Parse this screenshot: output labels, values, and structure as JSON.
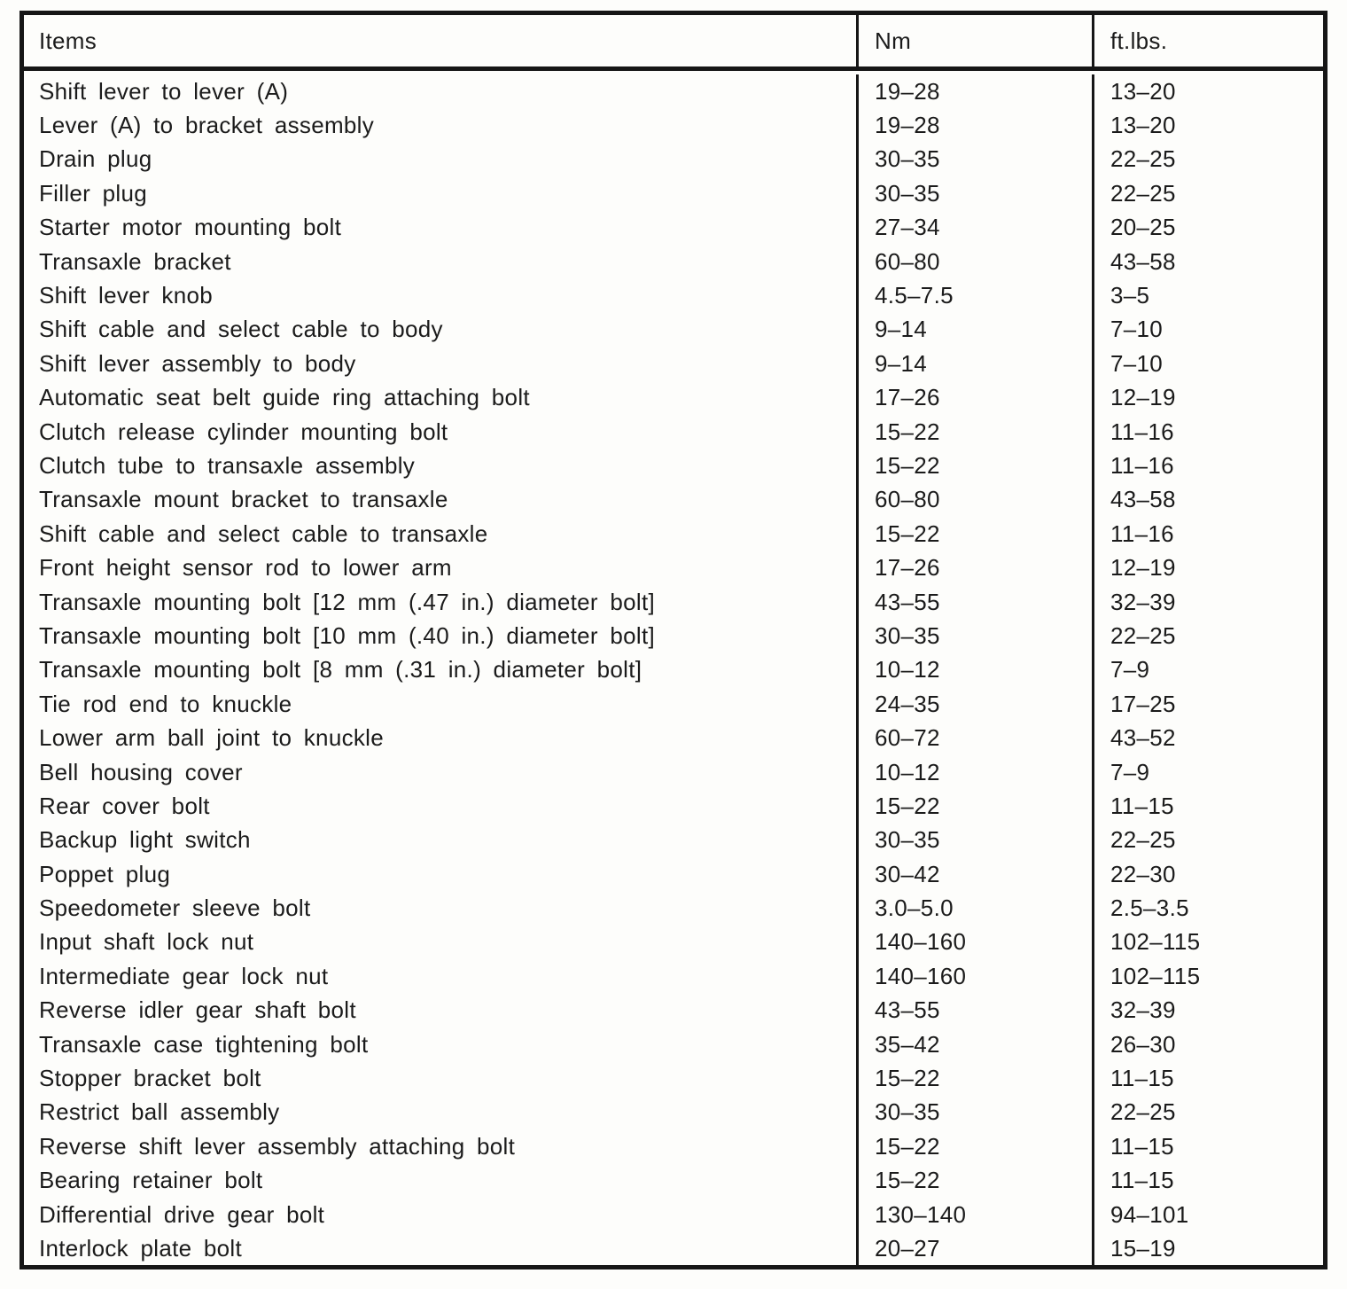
{
  "table": {
    "headers": [
      "Items",
      "Nm",
      "ft.lbs."
    ],
    "rows": [
      {
        "item": "Shift lever to lever (A)",
        "nm": "19–28",
        "ftlbs": "13–20"
      },
      {
        "item": "Lever (A) to bracket assembly",
        "nm": "19–28",
        "ftlbs": "13–20"
      },
      {
        "item": "Drain plug",
        "nm": "30–35",
        "ftlbs": "22–25"
      },
      {
        "item": "Filler plug",
        "nm": "30–35",
        "ftlbs": "22–25"
      },
      {
        "item": "Starter motor mounting bolt",
        "nm": "27–34",
        "ftlbs": "20–25"
      },
      {
        "item": "Transaxle bracket",
        "nm": "60–80",
        "ftlbs": "43–58"
      },
      {
        "item": "Shift lever knob",
        "nm": "4.5–7.5",
        "ftlbs": "3–5"
      },
      {
        "item": "Shift cable and select cable to body",
        "nm": "9–14",
        "ftlbs": "7–10"
      },
      {
        "item": "Shift lever assembly to body",
        "nm": "9–14",
        "ftlbs": "7–10"
      },
      {
        "item": "Automatic seat belt guide ring attaching bolt",
        "nm": "17–26",
        "ftlbs": "12–19"
      },
      {
        "item": "Clutch release cylinder mounting bolt",
        "nm": "15–22",
        "ftlbs": "11–16"
      },
      {
        "item": "Clutch tube to transaxle assembly",
        "nm": "15–22",
        "ftlbs": "11–16"
      },
      {
        "item": "Transaxle mount bracket to transaxle",
        "nm": "60–80",
        "ftlbs": "43–58"
      },
      {
        "item": "Shift cable and select cable to transaxle",
        "nm": "15–22",
        "ftlbs": "11–16"
      },
      {
        "item": "Front height sensor rod to lower arm",
        "nm": "17–26",
        "ftlbs": "12–19"
      },
      {
        "item": "Transaxle mounting bolt [12 mm (.47 in.) diameter bolt]",
        "nm": "43–55",
        "ftlbs": "32–39"
      },
      {
        "item": "Transaxle mounting bolt [10 mm (.40 in.) diameter bolt]",
        "nm": "30–35",
        "ftlbs": "22–25"
      },
      {
        "item": "Transaxle mounting bolt [8 mm (.31 in.) diameter bolt]",
        "nm": "10–12",
        "ftlbs": "7–9"
      },
      {
        "item": "Tie rod end to knuckle",
        "nm": "24–35",
        "ftlbs": "17–25"
      },
      {
        "item": "Lower arm ball joint to knuckle",
        "nm": "60–72",
        "ftlbs": "43–52"
      },
      {
        "item": "Bell housing cover",
        "nm": "10–12",
        "ftlbs": "7–9"
      },
      {
        "item": "Rear cover bolt",
        "nm": "15–22",
        "ftlbs": "11–15"
      },
      {
        "item": "Backup light switch",
        "nm": "30–35",
        "ftlbs": "22–25"
      },
      {
        "item": "Poppet plug",
        "nm": "30–42",
        "ftlbs": "22–30"
      },
      {
        "item": "Speedometer sleeve bolt",
        "nm": "3.0–5.0",
        "ftlbs": "2.5–3.5"
      },
      {
        "item": "Input shaft lock nut",
        "nm": "140–160",
        "ftlbs": "102–115"
      },
      {
        "item": "Intermediate gear lock nut",
        "nm": "140–160",
        "ftlbs": "102–115"
      },
      {
        "item": "Reverse idler gear shaft bolt",
        "nm": "43–55",
        "ftlbs": "32–39"
      },
      {
        "item": "Transaxle case tightening bolt",
        "nm": "35–42",
        "ftlbs": "26–30"
      },
      {
        "item": "Stopper bracket bolt",
        "nm": "15–22",
        "ftlbs": "11–15"
      },
      {
        "item": "Restrict ball assembly",
        "nm": "30–35",
        "ftlbs": "22–25"
      },
      {
        "item": "Reverse shift lever assembly attaching bolt",
        "nm": "15–22",
        "ftlbs": "11–15"
      },
      {
        "item": "Bearing retainer bolt",
        "nm": "15–22",
        "ftlbs": "11–15"
      },
      {
        "item": "Differential drive gear bolt",
        "nm": "130–140",
        "ftlbs": "94–101"
      },
      {
        "item": "Interlock plate bolt",
        "nm": "20–27",
        "ftlbs": "15–19"
      }
    ]
  }
}
